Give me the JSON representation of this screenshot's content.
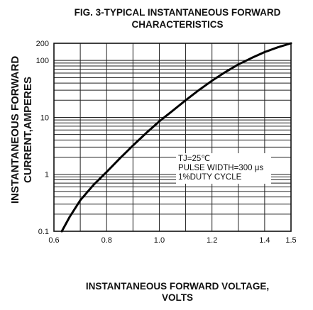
{
  "figure": {
    "title_line1": "FIG. 3-TYPICAL INSTANTANEOUS FORWARD",
    "title_line2": "CHARACTERISTICS",
    "ylabel_line1": "INSTANTANEOUS FORWARD",
    "ylabel_line2": "CURRENT,AMPERES",
    "xlabel_line1": "INSTANTANEOUS FORWARD VOLTAGE,",
    "xlabel_line2": "VOLTS"
  },
  "annotation": {
    "line1": "TJ=25℃",
    "line2": "PULSE WIDTH=300 μs",
    "line3": "1%DUTY CYCLE"
  },
  "chart_data": {
    "type": "line",
    "title": "FIG. 3-TYPICAL INSTANTANEOUS FORWARD CHARACTERISTICS",
    "xlabel": "INSTANTANEOUS FORWARD VOLTAGE, VOLTS",
    "ylabel": "INSTANTANEOUS FORWARD CURRENT,AMPERES",
    "xlim": [
      0.6,
      1.5
    ],
    "ylim": [
      0.1,
      200
    ],
    "yscale": "log",
    "grid": true,
    "x_tick_labels": [
      "0.6",
      "0.8",
      "1.0",
      "1.2",
      "1.4",
      "1.5"
    ],
    "x_ticks": [
      0.6,
      0.8,
      1.0,
      1.2,
      1.4,
      1.5
    ],
    "y_tick_labels": [
      "0.1",
      "1",
      "10",
      "100",
      "200"
    ],
    "y_ticks": [
      0.1,
      1,
      10,
      100,
      200
    ],
    "series": [
      {
        "x": [
          0.63,
          0.66,
          0.7,
          0.75,
          0.8,
          0.85,
          0.9,
          0.95,
          1.0,
          1.05,
          1.1,
          1.15,
          1.2,
          1.25,
          1.3,
          1.35,
          1.4,
          1.45,
          1.5
        ],
        "y": [
          0.1,
          0.18,
          0.35,
          0.65,
          1.1,
          1.9,
          3.2,
          5.3,
          8.5,
          13,
          20,
          30,
          44,
          62,
          85,
          110,
          140,
          170,
          200
        ]
      }
    ]
  }
}
